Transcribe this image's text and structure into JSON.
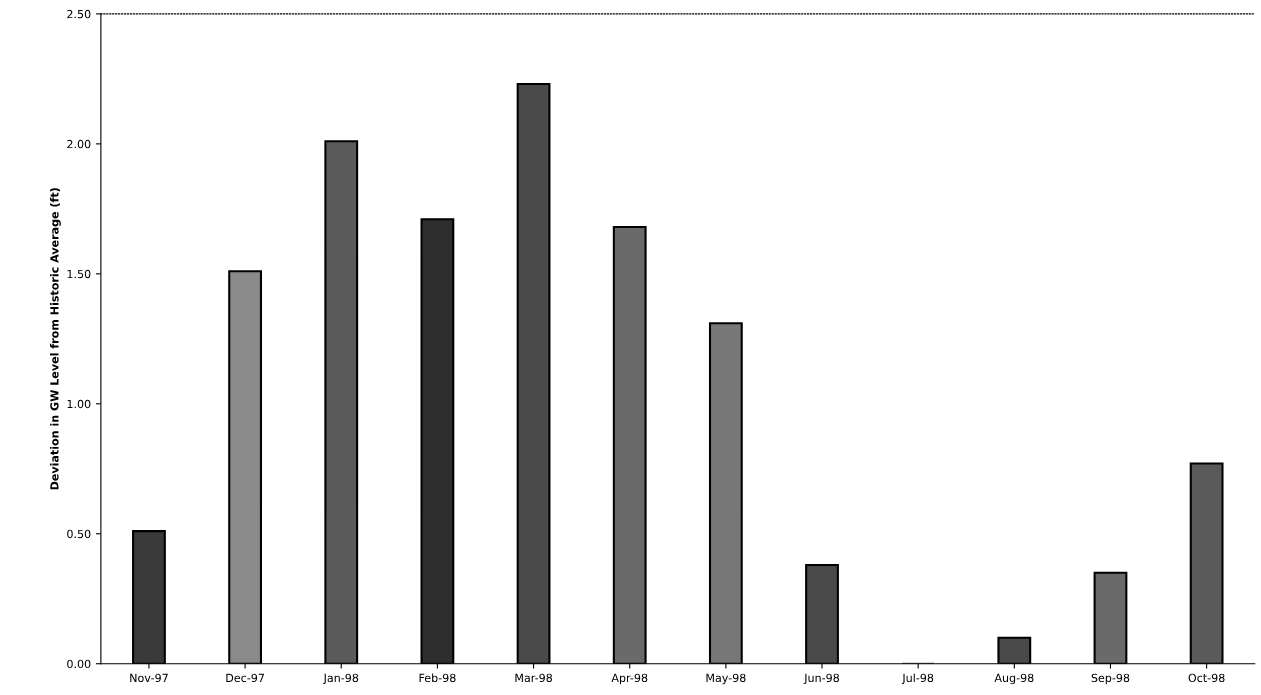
{
  "chart_data": {
    "type": "bar",
    "ylabel": "Deviation in GW Level from Historic Average (ft)",
    "categories": [
      "Nov-97",
      "Dec-97",
      "Jan-98",
      "Feb-98",
      "Mar-98",
      "Apr-98",
      "May-98",
      "Jun-98",
      "Jul-98",
      "Aug-98",
      "Sep-98",
      "Oct-98"
    ],
    "values": [
      0.51,
      1.51,
      2.01,
      1.71,
      2.23,
      1.68,
      1.31,
      0.38,
      0,
      0.1,
      0.35,
      0.77
    ],
    "colors": [
      "#3a3a3a",
      "#8a8a8a",
      "#5a5a5a",
      "#2e2e2e",
      "#4a4a4a",
      "#6a6a6a",
      "#777777",
      "#4a4a4a",
      "#555555",
      "#4a4a4a",
      "#6a6a6a",
      "#5a5a5a"
    ],
    "ylim": [
      0,
      2.5
    ],
    "yticks": [
      {
        "value": 0,
        "label": "0.00"
      },
      {
        "value": 0.5,
        "label": "0.50"
      },
      {
        "value": 1,
        "label": "1.00"
      },
      {
        "value": 1.5,
        "label": "1.50"
      },
      {
        "value": 2,
        "label": "2.00"
      },
      {
        "value": 2.5,
        "label": "2.50"
      }
    ],
    "grid": false
  }
}
